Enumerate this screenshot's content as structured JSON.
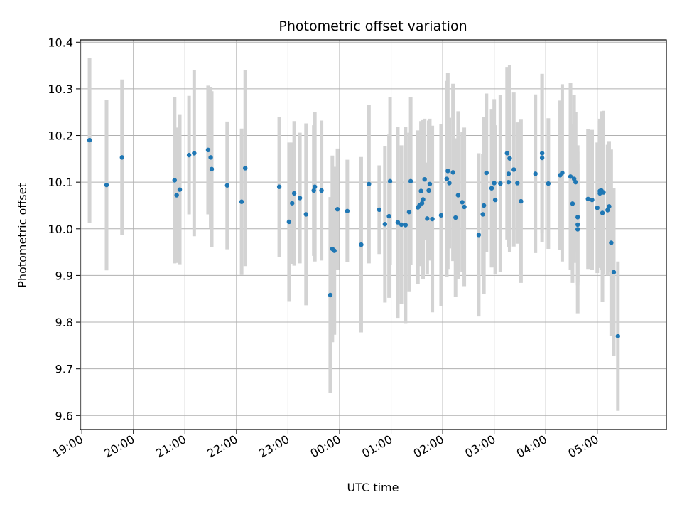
{
  "chart_data": {
    "type": "scatter",
    "title": "Photometric offset variation",
    "xlabel": "UTC time",
    "ylabel": "Photometric offset",
    "grid": true,
    "legend": "none",
    "xlim_hours": [
      18.97,
      30.34
    ],
    "ylim": [
      9.57,
      10.405
    ],
    "x_unit": "hours since 00:00 of first day (values > 24 are next day)",
    "x_ticks": [
      {
        "value": 19,
        "label": "19:00"
      },
      {
        "value": 20,
        "label": "20:00"
      },
      {
        "value": 21,
        "label": "21:00"
      },
      {
        "value": 22,
        "label": "22:00"
      },
      {
        "value": 23,
        "label": "23:00"
      },
      {
        "value": 24,
        "label": "00:00"
      },
      {
        "value": 25,
        "label": "01:00"
      },
      {
        "value": 26,
        "label": "02:00"
      },
      {
        "value": 27,
        "label": "03:00"
      },
      {
        "value": 28,
        "label": "04:00"
      },
      {
        "value": 29,
        "label": "05:00"
      }
    ],
    "y_ticks": [
      {
        "value": 9.6,
        "label": "9.6"
      },
      {
        "value": 9.7,
        "label": "9.7"
      },
      {
        "value": 9.8,
        "label": "9.8"
      },
      {
        "value": 9.9,
        "label": "9.9"
      },
      {
        "value": 10.0,
        "label": "10.0"
      },
      {
        "value": 10.1,
        "label": "10.1"
      },
      {
        "value": 10.2,
        "label": "10.2"
      },
      {
        "value": 10.3,
        "label": "10.3"
      },
      {
        "value": 10.4,
        "label": "10.4"
      }
    ],
    "colors": {
      "point": "#1f77b4",
      "errorbar": "#d3d3d3",
      "grid": "#b0b0b0"
    },
    "points": [
      [
        19.15,
        10.19,
        0.177
      ],
      [
        19.48,
        10.094,
        0.183
      ],
      [
        19.78,
        10.153,
        0.167
      ],
      [
        20.8,
        10.104,
        0.178
      ],
      [
        20.84,
        10.072,
        0.145
      ],
      [
        20.9,
        10.084,
        0.16
      ],
      [
        21.08,
        10.158,
        0.127
      ],
      [
        21.18,
        10.162,
        0.178
      ],
      [
        21.45,
        10.169,
        0.138
      ],
      [
        21.5,
        10.153,
        0.15
      ],
      [
        21.52,
        10.128,
        0.167
      ],
      [
        21.82,
        10.093,
        0.137
      ],
      [
        22.1,
        10.058,
        0.157
      ],
      [
        22.17,
        10.13,
        0.21
      ],
      [
        22.83,
        10.09,
        0.15
      ],
      [
        23.02,
        10.015,
        0.17
      ],
      [
        23.08,
        10.055,
        0.13
      ],
      [
        23.12,
        10.076,
        0.155
      ],
      [
        23.23,
        10.066,
        0.14
      ],
      [
        23.35,
        10.031,
        0.195
      ],
      [
        23.5,
        10.082,
        0.14
      ],
      [
        23.52,
        10.09,
        0.16
      ],
      [
        23.65,
        10.082,
        0.15
      ],
      [
        23.82,
        9.858,
        0.21
      ],
      [
        23.86,
        9.957,
        0.2
      ],
      [
        23.9,
        9.953,
        0.18
      ],
      [
        23.96,
        10.042,
        0.13
      ],
      [
        24.15,
        10.038,
        0.11
      ],
      [
        24.42,
        9.966,
        0.188
      ],
      [
        24.57,
        10.096,
        0.17
      ],
      [
        24.77,
        10.041,
        0.095
      ],
      [
        24.88,
        10.01,
        0.168
      ],
      [
        24.96,
        10.027,
        0.175
      ],
      [
        24.98,
        10.102,
        0.18
      ],
      [
        25.13,
        10.014,
        0.205
      ],
      [
        25.2,
        10.009,
        0.17
      ],
      [
        25.28,
        10.008,
        0.21
      ],
      [
        25.35,
        10.036,
        0.17
      ],
      [
        25.38,
        10.102,
        0.18
      ],
      [
        25.52,
        10.046,
        0.165
      ],
      [
        25.55,
        10.05,
        0.13
      ],
      [
        25.58,
        10.081,
        0.15
      ],
      [
        25.62,
        10.063,
        0.17
      ],
      [
        25.6,
        10.055,
        0.13
      ],
      [
        25.65,
        10.106,
        0.13
      ],
      [
        25.7,
        10.022,
        0.12
      ],
      [
        25.73,
        10.082,
        0.15
      ],
      [
        25.75,
        10.096,
        0.14
      ],
      [
        25.8,
        10.021,
        0.2
      ],
      [
        25.97,
        10.029,
        0.195
      ],
      [
        26.08,
        10.107,
        0.21
      ],
      [
        26.1,
        10.124,
        0.21
      ],
      [
        26.13,
        10.098,
        0.14
      ],
      [
        26.2,
        10.121,
        0.19
      ],
      [
        26.25,
        10.024,
        0.17
      ],
      [
        26.3,
        10.072,
        0.18
      ],
      [
        26.38,
        10.057,
        0.15
      ],
      [
        26.42,
        10.047,
        0.17
      ],
      [
        26.7,
        9.987,
        0.175
      ],
      [
        26.78,
        10.031,
        0.13
      ],
      [
        26.8,
        10.05,
        0.19
      ],
      [
        26.85,
        10.12,
        0.17
      ],
      [
        26.95,
        10.087,
        0.17
      ],
      [
        27.0,
        10.098,
        0.18
      ],
      [
        27.02,
        10.062,
        0.16
      ],
      [
        27.12,
        10.097,
        0.19
      ],
      [
        27.25,
        10.162,
        0.185
      ],
      [
        27.3,
        10.151,
        0.2
      ],
      [
        27.28,
        10.118,
        0.15
      ],
      [
        27.28,
        10.1,
        0.14
      ],
      [
        27.38,
        10.127,
        0.165
      ],
      [
        27.45,
        10.098,
        0.13
      ],
      [
        27.52,
        10.059,
        0.175
      ],
      [
        27.8,
        10.118,
        0.17
      ],
      [
        27.93,
        10.162,
        0.17
      ],
      [
        27.93,
        10.152,
        0.18
      ],
      [
        28.05,
        10.097,
        0.14
      ],
      [
        28.28,
        10.115,
        0.16
      ],
      [
        28.32,
        10.12,
        0.19
      ],
      [
        28.48,
        10.112,
        0.2
      ],
      [
        28.52,
        10.054,
        0.17
      ],
      [
        28.55,
        10.107,
        0.18
      ],
      [
        28.58,
        10.1,
        0.15
      ],
      [
        28.62,
        10.025,
        0.14
      ],
      [
        28.62,
        10.009,
        0.13
      ],
      [
        28.62,
        9.999,
        0.18
      ],
      [
        28.82,
        10.064,
        0.15
      ],
      [
        28.9,
        10.062,
        0.15
      ],
      [
        29.0,
        10.045,
        0.14
      ],
      [
        29.05,
        10.076,
        0.16
      ],
      [
        29.05,
        10.081,
        0.15
      ],
      [
        29.08,
        10.082,
        0.17
      ],
      [
        29.1,
        10.034,
        0.19
      ],
      [
        29.12,
        10.078,
        0.175
      ],
      [
        29.2,
        10.04,
        0.14
      ],
      [
        29.23,
        10.048,
        0.14
      ],
      [
        29.27,
        9.97,
        0.2
      ],
      [
        29.32,
        9.907,
        0.18
      ],
      [
        29.4,
        9.77,
        0.16
      ]
    ]
  }
}
